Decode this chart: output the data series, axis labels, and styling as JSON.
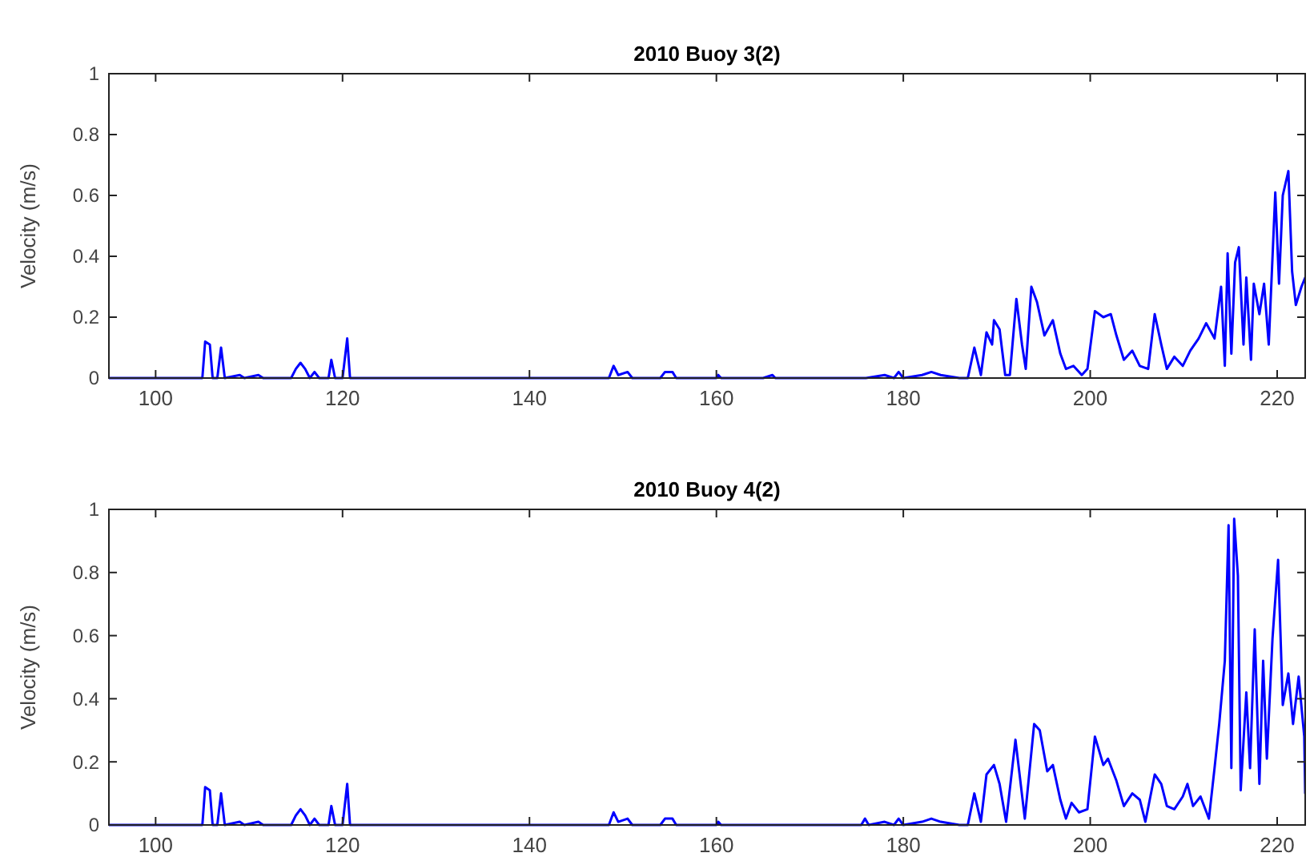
{
  "chart_data": [
    {
      "type": "line",
      "title": "2010 Buoy 3(2)",
      "ylabel": "Velocity (m/s)",
      "xlim": [
        95,
        223
      ],
      "xticks": [
        100,
        120,
        140,
        160,
        180,
        200,
        220
      ],
      "ylim": [
        0,
        1
      ],
      "yticks": [
        0,
        0.2,
        0.4,
        0.6,
        0.8,
        1
      ],
      "x": [
        95,
        105,
        105.3,
        105.8,
        106.1,
        106.6,
        107,
        107.4,
        109,
        109.5,
        111,
        111.5,
        114.5,
        115,
        115.5,
        116,
        116.5,
        117,
        117.5,
        118.5,
        118.8,
        119.2,
        120,
        120.5,
        120.8,
        140,
        148.5,
        149,
        149.5,
        150.5,
        151,
        154,
        154.5,
        155.3,
        155.7,
        160,
        160.2,
        160.5,
        165,
        166,
        166.3,
        176,
        178,
        179,
        179.5,
        180,
        182,
        183,
        184,
        186,
        186.9,
        187.6,
        188.3,
        188.9,
        189.5,
        189.7,
        190.3,
        190.9,
        191.4,
        192.1,
        192.7,
        193.1,
        193.7,
        194.3,
        195.1,
        196,
        196.8,
        197.4,
        198.2,
        199.1,
        199.7,
        200.5,
        201.4,
        202.2,
        202.8,
        203.6,
        204.5,
        205.3,
        206.2,
        206.9,
        207.6,
        208.2,
        209,
        209.9,
        210.7,
        211.6,
        212.4,
        213.3,
        214,
        214.4,
        214.7,
        215.1,
        215.5,
        215.9,
        216.4,
        216.7,
        217.2,
        217.5,
        218.1,
        218.6,
        219.1,
        219.8,
        220.2,
        220.6,
        221.2,
        221.6,
        222,
        222.6,
        223
      ],
      "series": [
        {
          "color": "#0000ff",
          "values": [
            0,
            0,
            0.12,
            0.11,
            0,
            0,
            0.1,
            0,
            0.01,
            0,
            0.01,
            0,
            0,
            0.03,
            0.05,
            0.03,
            0,
            0.02,
            0,
            0,
            0.06,
            0,
            0,
            0.13,
            0,
            0,
            0,
            0.04,
            0.01,
            0.02,
            0,
            0,
            0.02,
            0.02,
            0,
            0,
            0.01,
            0,
            0,
            0.01,
            0,
            0,
            0.01,
            0,
            0.02,
            0,
            0.01,
            0.02,
            0.01,
            0,
            0,
            0.1,
            0.01,
            0.15,
            0.11,
            0.19,
            0.16,
            0.01,
            0.01,
            0.26,
            0.11,
            0.03,
            0.3,
            0.25,
            0.14,
            0.19,
            0.08,
            0.03,
            0.04,
            0.01,
            0.03,
            0.22,
            0.2,
            0.21,
            0.14,
            0.06,
            0.09,
            0.04,
            0.03,
            0.21,
            0.11,
            0.03,
            0.07,
            0.04,
            0.09,
            0.13,
            0.18,
            0.13,
            0.3,
            0.04,
            0.41,
            0.08,
            0.38,
            0.43,
            0.11,
            0.33,
            0.06,
            0.31,
            0.21,
            0.31,
            0.11,
            0.61,
            0.31,
            0.6,
            0.68,
            0.35,
            0.24,
            0.3,
            0.33
          ]
        }
      ]
    },
    {
      "type": "line",
      "title": "2010 Buoy 4(2)",
      "ylabel": "Velocity (m/s)",
      "xlim": [
        95,
        223
      ],
      "xticks": [
        100,
        120,
        140,
        160,
        180,
        200,
        220
      ],
      "ylim": [
        0,
        1
      ],
      "yticks": [
        0,
        0.2,
        0.4,
        0.6,
        0.8,
        1
      ],
      "x": [
        95,
        105,
        105.3,
        105.8,
        106.1,
        106.6,
        107,
        107.4,
        109,
        109.5,
        111,
        111.5,
        114.5,
        115,
        115.5,
        116,
        116.5,
        117,
        117.5,
        118.5,
        118.8,
        119.2,
        120,
        120.5,
        120.8,
        140,
        148.5,
        149,
        149.5,
        150.5,
        151,
        154,
        154.5,
        155.3,
        155.7,
        160,
        160.2,
        160.5,
        175.5,
        175.9,
        176.3,
        178,
        179,
        179.5,
        180,
        182,
        183,
        184,
        186,
        186.9,
        187.6,
        188.3,
        188.9,
        189.7,
        190.3,
        191,
        192,
        193,
        194,
        194.6,
        195.4,
        196,
        196.8,
        197.4,
        198,
        198.8,
        199.7,
        200.5,
        201.4,
        201.9,
        202.8,
        203.6,
        204.5,
        205.3,
        205.9,
        206.9,
        207.6,
        208.2,
        209,
        209.9,
        210.4,
        211,
        211.8,
        212.7,
        213.3,
        213.8,
        214.4,
        214.8,
        215.1,
        215.4,
        215.8,
        216.1,
        216.7,
        217.1,
        217.6,
        218.1,
        218.5,
        218.9,
        219.5,
        220.1,
        220.6,
        221.2,
        221.7,
        222.3,
        222.9,
        223
      ],
      "series": [
        {
          "color": "#0000ff",
          "values": [
            0,
            0,
            0.12,
            0.11,
            0,
            0,
            0.1,
            0,
            0.01,
            0,
            0.01,
            0,
            0,
            0.03,
            0.05,
            0.03,
            0,
            0.02,
            0,
            0,
            0.06,
            0,
            0,
            0.13,
            0,
            0,
            0,
            0.04,
            0.01,
            0.02,
            0,
            0,
            0.02,
            0.02,
            0,
            0,
            0.01,
            0,
            0,
            0.02,
            0,
            0.01,
            0,
            0.02,
            0,
            0.01,
            0.02,
            0.01,
            0,
            0,
            0.1,
            0.01,
            0.16,
            0.19,
            0.13,
            0.01,
            0.27,
            0.02,
            0.32,
            0.3,
            0.17,
            0.19,
            0.08,
            0.02,
            0.07,
            0.04,
            0.05,
            0.28,
            0.19,
            0.21,
            0.14,
            0.06,
            0.1,
            0.08,
            0.01,
            0.16,
            0.13,
            0.06,
            0.05,
            0.09,
            0.13,
            0.06,
            0.09,
            0.02,
            0.18,
            0.32,
            0.52,
            0.95,
            0.18,
            0.97,
            0.79,
            0.11,
            0.42,
            0.18,
            0.62,
            0.13,
            0.52,
            0.21,
            0.59,
            0.84,
            0.38,
            0.48,
            0.32,
            0.47,
            0.28,
            0.1
          ]
        }
      ]
    }
  ]
}
